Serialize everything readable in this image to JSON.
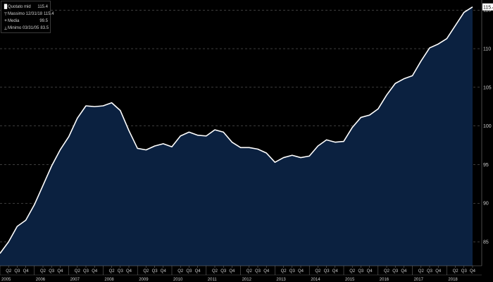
{
  "legend": {
    "items": [
      {
        "label": "Quotato mid",
        "value": "115.4",
        "icon": "square-marker"
      },
      {
        "label": "Massimo 12/31/18",
        "value": "115.4",
        "icon": "high-marker"
      },
      {
        "label": "Media",
        "value": "99.5",
        "icon": "plus-marker"
      },
      {
        "label": "Minimo 03/31/05",
        "value": "83.5",
        "icon": "low-marker"
      }
    ]
  },
  "colors": {
    "background": "#000000",
    "area_fill": "#0b2140",
    "line": "#ffffff",
    "grid": "#7a7a7a",
    "text": "#cfcfcf"
  },
  "chart_data": {
    "type": "area",
    "title": "",
    "xlabel": "",
    "ylabel": "",
    "ylim": [
      81.9,
      116.3
    ],
    "yticks": [
      85,
      90,
      95,
      100,
      105,
      110,
      115
    ],
    "y_axis_position": "right",
    "grid": "horizontal dashed",
    "last_value_label": "115.4",
    "years": [
      "2005",
      "2006",
      "2007",
      "2008",
      "2009",
      "2010",
      "2011",
      "2012",
      "2013",
      "2014",
      "2015",
      "2016",
      "2017",
      "2018"
    ],
    "quarter_labels": [
      "Q1",
      "Q2",
      "Q3",
      "Q4"
    ],
    "x": [
      "2005-Q1",
      "2005-Q2",
      "2005-Q3",
      "2005-Q4",
      "2006-Q1",
      "2006-Q2",
      "2006-Q3",
      "2006-Q4",
      "2007-Q1",
      "2007-Q2",
      "2007-Q3",
      "2007-Q4",
      "2008-Q1",
      "2008-Q2",
      "2008-Q3",
      "2008-Q4",
      "2009-Q1",
      "2009-Q2",
      "2009-Q3",
      "2009-Q4",
      "2010-Q1",
      "2010-Q2",
      "2010-Q3",
      "2010-Q4",
      "2011-Q1",
      "2011-Q2",
      "2011-Q3",
      "2011-Q4",
      "2012-Q1",
      "2012-Q2",
      "2012-Q3",
      "2012-Q4",
      "2013-Q1",
      "2013-Q2",
      "2013-Q3",
      "2013-Q4",
      "2014-Q1",
      "2014-Q2",
      "2014-Q3",
      "2014-Q4",
      "2015-Q1",
      "2015-Q2",
      "2015-Q3",
      "2015-Q4",
      "2016-Q1",
      "2016-Q2",
      "2016-Q3",
      "2016-Q4",
      "2017-Q1",
      "2017-Q2",
      "2017-Q3",
      "2017-Q4",
      "2018-Q1",
      "2018-Q2",
      "2018-Q3",
      "2018-Q4"
    ],
    "series": [
      {
        "values": [
          83.5,
          85.0,
          87.0,
          87.8,
          89.8,
          92.3,
          94.8,
          96.9,
          98.6,
          101.0,
          102.6,
          102.5,
          102.6,
          103.0,
          102.0,
          99.4,
          97.1,
          96.9,
          97.4,
          97.7,
          97.3,
          98.7,
          99.2,
          98.8,
          98.7,
          99.5,
          99.2,
          97.9,
          97.2,
          97.2,
          97.0,
          96.5,
          95.3,
          95.9,
          96.2,
          95.9,
          96.1,
          97.4,
          98.2,
          97.9,
          98.0,
          99.8,
          101.1,
          101.4,
          102.2,
          104.0,
          105.5,
          106.1,
          106.5,
          108.4,
          110.1,
          110.6,
          111.3,
          113.0,
          114.7,
          115.4
        ]
      }
    ]
  }
}
